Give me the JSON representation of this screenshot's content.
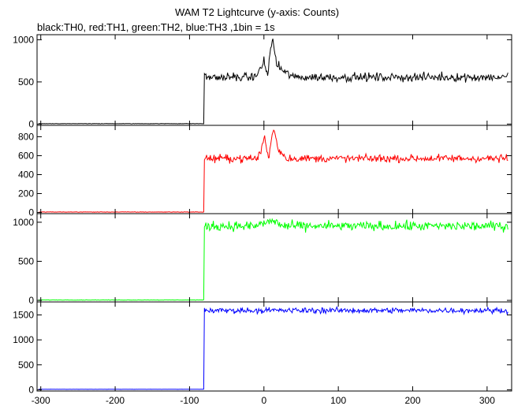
{
  "chart_data": {
    "type": "line",
    "title": "WAM T2 Lightcurve (y-axis: Counts)",
    "subtitle": "black:TH0, red:TH1, green:TH2, blue:TH3 ,1bin = 1s",
    "x_range": [
      -305,
      333
    ],
    "x_ticks": [
      -300,
      -200,
      -100,
      0,
      100,
      200,
      300
    ],
    "grid": false,
    "panels": [
      {
        "series": "TH0",
        "color": "#000000",
        "y_range": [
          -15,
          1060
        ],
        "y_ticks": [
          0,
          500,
          1000
        ],
        "pre_level": 5,
        "step_x": -80,
        "post_level": 555,
        "noise": 25,
        "burst": [
          [
            -12,
            30
          ],
          [
            -6,
            70
          ],
          [
            -2,
            140
          ],
          [
            0,
            220
          ],
          [
            2,
            90
          ],
          [
            5,
            40
          ],
          [
            8,
            280
          ],
          [
            11,
            430
          ],
          [
            14,
            330
          ],
          [
            17,
            160
          ],
          [
            21,
            120
          ],
          [
            26,
            70
          ],
          [
            32,
            40
          ],
          [
            40,
            15
          ]
        ]
      },
      {
        "series": "TH1",
        "color": "#ff0000",
        "y_range": [
          -12,
          920
        ],
        "y_ticks": [
          0,
          200,
          400,
          600,
          800
        ],
        "pre_level": 5,
        "step_x": -80,
        "post_level": 570,
        "noise": 20,
        "burst": [
          [
            -8,
            30
          ],
          [
            -4,
            80
          ],
          [
            -1,
            180
          ],
          [
            1,
            240
          ],
          [
            4,
            60
          ],
          [
            7,
            20
          ],
          [
            10,
            200
          ],
          [
            13,
            320
          ],
          [
            16,
            230
          ],
          [
            20,
            80
          ],
          [
            24,
            50
          ],
          [
            30,
            25
          ]
        ]
      },
      {
        "series": "TH2",
        "color": "#00ff00",
        "y_range": [
          -20,
          1110
        ],
        "y_ticks": [
          0,
          500,
          1000
        ],
        "pre_level": 5,
        "step_x": -80,
        "post_level": 950,
        "noise": 30,
        "burst": [
          [
            -8,
            20
          ],
          [
            0,
            40
          ],
          [
            10,
            60
          ],
          [
            14,
            70
          ],
          [
            18,
            40
          ],
          [
            25,
            10
          ]
        ]
      },
      {
        "series": "TH3",
        "color": "#0000ff",
        "y_range": [
          -25,
          1760
        ],
        "y_ticks": [
          0,
          500,
          1000,
          1500
        ],
        "pre_level": 10,
        "step_x": -80,
        "post_level": 1590,
        "noise": 28,
        "burst": []
      }
    ]
  }
}
